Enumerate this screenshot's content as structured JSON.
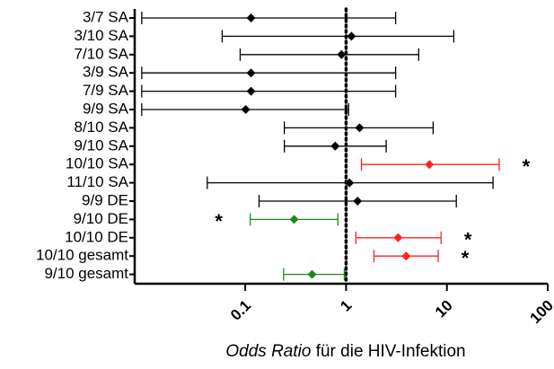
{
  "chart_data": {
    "type": "forest",
    "categories": [
      "3/7 SA",
      "3/10 SA",
      "7/10 SA",
      "3/9 SA",
      "7/9 SA",
      "9/9 SA",
      "8/10 SA",
      "9/10 SA",
      "10/10 SA",
      "11/10 SA",
      "9/9 DE",
      "9/10 DE",
      "10/10 DE",
      "10/10 gesamt",
      "9/10 gesamt"
    ],
    "values": [
      0.114,
      1.13,
      0.9,
      0.114,
      0.114,
      0.101,
      1.36,
      0.78,
      6.7,
      1.08,
      1.3,
      0.305,
      3.28,
      3.94,
      0.46
    ],
    "lower": [
      0.0094,
      0.059,
      0.089,
      0.0094,
      0.0094,
      0.0094,
      0.244,
      0.244,
      1.42,
      0.042,
      0.137,
      0.112,
      1.25,
      1.89,
      0.24
    ],
    "upper": [
      3.1,
      11.7,
      5.25,
      3.1,
      3.1,
      1.06,
      7.3,
      2.5,
      33,
      28.7,
      12.4,
      0.83,
      8.75,
      8.2,
      0.96
    ],
    "colors": [
      "#000000",
      "#000000",
      "#000000",
      "#000000",
      "#000000",
      "#000000",
      "#000000",
      "#000000",
      "#ff2020",
      "#000000",
      "#000000",
      "#1a8c1a",
      "#ff2020",
      "#ff2020",
      "#1a8c1a"
    ],
    "markers": [
      null,
      null,
      null,
      null,
      null,
      null,
      null,
      null,
      "*",
      null,
      null,
      "*",
      "*",
      "*",
      null
    ],
    "xlabel": [
      "Odds Ratio",
      " für die HIV-Infektion"
    ],
    "xscale": "log",
    "xlim": [
      0.008,
      100
    ],
    "xticks": [
      0.1,
      1,
      10,
      100
    ],
    "reference_line": 1
  }
}
